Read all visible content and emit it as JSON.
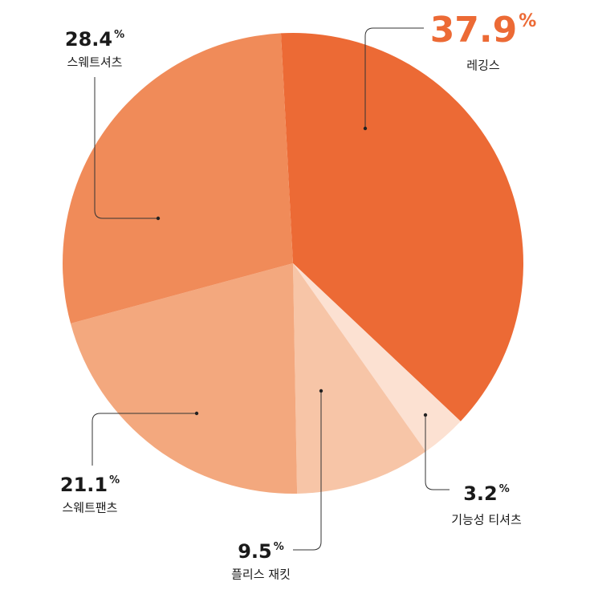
{
  "chart_data": {
    "type": "pie",
    "categories": [
      "레깅스",
      "기능성 티셔츠",
      "플리스 재킷",
      "스웨트팬츠",
      "스웨트셔츠"
    ],
    "values": [
      37.9,
      3.2,
      9.5,
      21.1,
      28.4
    ],
    "unit_label": "%",
    "colors": [
      "#ec6a35",
      "#fce1d2",
      "#f7c5a7",
      "#f3a87e",
      "#f08b59"
    ],
    "highlight_color": "#ec6a35"
  }
}
